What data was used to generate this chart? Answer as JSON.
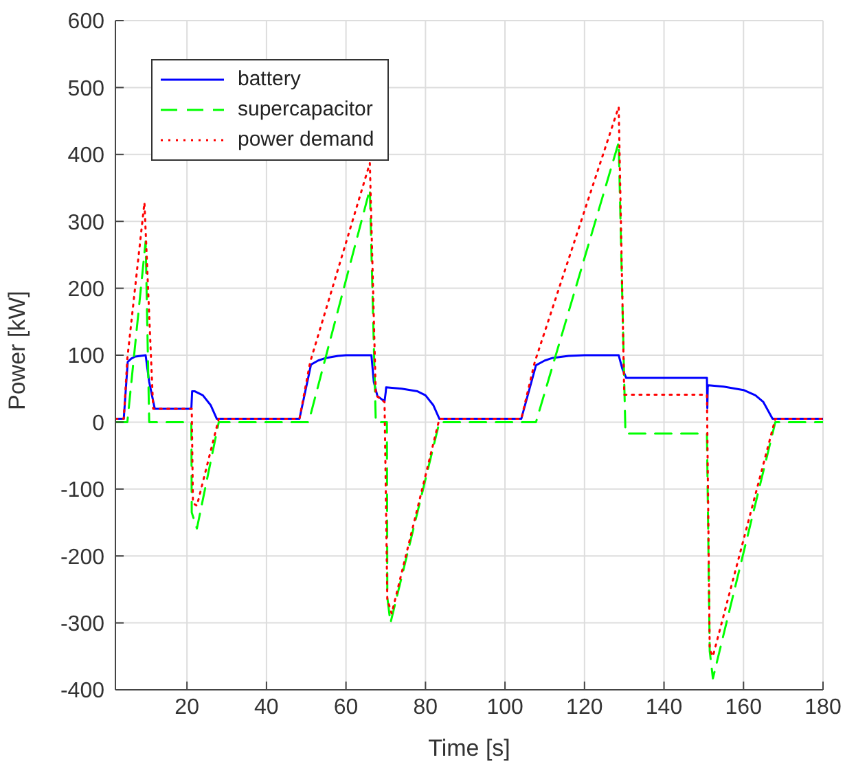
{
  "chart_data": {
    "type": "line",
    "xlabel": "Time [s]",
    "ylabel": "Power [kW]",
    "xlim": [
      2,
      180
    ],
    "ylim": [
      -400,
      600
    ],
    "xticks": [
      20,
      40,
      60,
      80,
      100,
      120,
      140,
      160,
      180
    ],
    "yticks": [
      -400,
      -300,
      -200,
      -100,
      0,
      100,
      200,
      300,
      400,
      500,
      600
    ],
    "grid": true,
    "legend": "top left",
    "marker": "none",
    "series": [
      {
        "name": "battery",
        "color": "#0000ff",
        "line_style": "solid",
        "x": [
          2,
          4.1,
          5.1,
          6,
          7,
          9.6,
          10.5,
          11.9,
          21.1,
          21.3,
          22,
          24,
          26,
          27.5,
          48.3,
          51.2,
          53,
          55,
          58,
          60,
          66.4,
          67,
          67.9,
          69.7,
          70,
          70.1,
          74,
          78,
          80,
          82,
          83.5,
          104.1,
          107.8,
          110,
          112,
          116,
          120,
          128.6,
          129.5,
          130.5,
          150.8,
          150.9,
          151,
          151.2,
          155,
          160,
          163,
          165,
          167.3,
          180
        ],
        "values": [
          5,
          5,
          90,
          95,
          98,
          100,
          60,
          20,
          20,
          46,
          46,
          40,
          25,
          5,
          5,
          86,
          92,
          96,
          99,
          100,
          100,
          60,
          39,
          31,
          45,
          52,
          50,
          46,
          40,
          25,
          5,
          5,
          85,
          92,
          96,
          99,
          100,
          100,
          80,
          66,
          66,
          21,
          53,
          55,
          53,
          48,
          40,
          30,
          5,
          5
        ]
      },
      {
        "name": "supercapacitor",
        "color": "#00ff00",
        "line_style": "dashed",
        "x": [
          2,
          5,
          9.6,
          10.5,
          21.1,
          21.2,
          22.5,
          28,
          50.6,
          66,
          67.5,
          70.3,
          70.4,
          71.2,
          83.5,
          107.8,
          128.6,
          130.3,
          150.8,
          151.5,
          152.3,
          168,
          180
        ],
        "values": [
          0,
          0,
          270,
          0,
          0,
          -135,
          -159,
          0,
          0,
          348,
          0,
          0,
          -262,
          -300,
          0,
          0,
          418,
          -17,
          -17,
          -342,
          -383,
          0,
          0
        ]
      },
      {
        "name": "power demand",
        "color": "#ff0000",
        "line_style": "dotted",
        "x": [
          2,
          4.1,
          5,
          9.3,
          11.5,
          21.2,
          21.5,
          22.5,
          28,
          48.3,
          51,
          66,
          67.5,
          69.7,
          70.4,
          71.5,
          83.5,
          104.1,
          107.5,
          128.6,
          130,
          150.8,
          151.5,
          152.3,
          168,
          180
        ],
        "values": [
          5,
          5,
          95,
          328,
          20,
          20,
          -121,
          -125,
          5,
          5,
          90,
          387,
          40,
          30,
          -265,
          -286,
          5,
          5,
          90,
          471,
          41,
          41,
          -340,
          -350,
          5,
          5
        ]
      }
    ]
  }
}
